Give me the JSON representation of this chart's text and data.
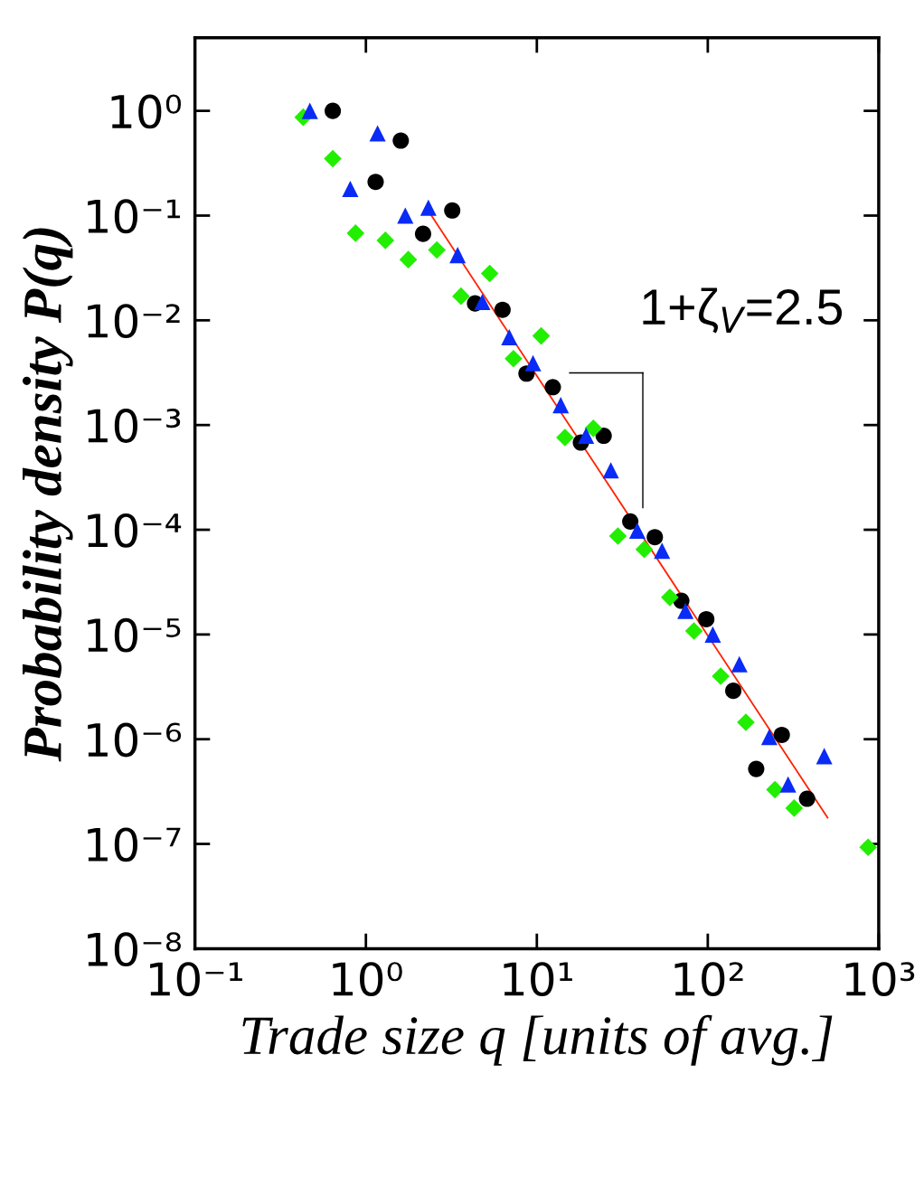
{
  "chart_data": {
    "type": "scatter",
    "xlabel": "Trade size q [units of avg.]",
    "ylabel": "Probability density P(q)",
    "log": "xy",
    "xlim": [
      0.1,
      1000
    ],
    "ylim": [
      1e-08,
      5
    ],
    "xticks": [
      {
        "value": 0.1,
        "label": "10⁻¹"
      },
      {
        "value": 1,
        "label": "10⁰"
      },
      {
        "value": 10,
        "label": "10¹"
      },
      {
        "value": 100,
        "label": "10²"
      },
      {
        "value": 1000,
        "label": "10³"
      }
    ],
    "yticks": [
      {
        "value": 1e-08,
        "label": "10⁻⁸"
      },
      {
        "value": 1e-07,
        "label": "10⁻⁷"
      },
      {
        "value": 1e-06,
        "label": "10⁻⁶"
      },
      {
        "value": 1e-05,
        "label": "10⁻⁵"
      },
      {
        "value": 0.0001,
        "label": "10⁻⁴"
      },
      {
        "value": 0.001,
        "label": "10⁻³"
      },
      {
        "value": 0.01,
        "label": "10⁻²"
      },
      {
        "value": 0.1,
        "label": "10⁻¹"
      },
      {
        "value": 1,
        "label": "10⁰"
      }
    ],
    "grid": false,
    "legend": false,
    "annotations": [
      "1+ζ$_{V}$=2.5"
    ],
    "series": [
      {
        "marker": "circle",
        "color": "#000000",
        "x": [
          0.64,
          1.14,
          1.6,
          2.16,
          3.2,
          4.35,
          6.3,
          8.7,
          12.4,
          18.1,
          24.6,
          35.2,
          49,
          70,
          98,
          141,
          192,
          271,
          381
        ],
        "values": [
          1.0,
          0.21,
          0.52,
          0.067,
          0.112,
          0.0145,
          0.0126,
          0.0031,
          0.0023,
          0.00068,
          0.00079,
          0.00012,
          8.5e-05,
          2.1e-05,
          1.4e-05,
          2.9e-06,
          5.2e-07,
          1.1e-06,
          2.7e-07
        ]
      },
      {
        "marker": "diamond",
        "color": "#22ee00",
        "x": [
          0.43,
          0.64,
          0.87,
          1.3,
          1.77,
          2.6,
          3.6,
          5.3,
          7.3,
          10.6,
          14.6,
          21.4,
          29.8,
          42.5,
          60,
          83,
          119,
          167,
          247,
          320,
          867
        ],
        "values": [
          0.87,
          0.35,
          0.068,
          0.058,
          0.038,
          0.047,
          0.017,
          0.028,
          0.0043,
          0.0071,
          0.00076,
          0.00093,
          8.7e-05,
          6.5e-05,
          2.26e-05,
          1.08e-05,
          4e-06,
          1.45e-06,
          3.3e-07,
          2.2e-07,
          9.3e-08
        ]
      },
      {
        "marker": "triangle",
        "color": "#0a2af5",
        "x": [
          0.47,
          0.81,
          1.17,
          1.7,
          2.32,
          3.44,
          4.8,
          6.9,
          9.5,
          13.8,
          19.4,
          27.1,
          38.7,
          54,
          74,
          107,
          153,
          229,
          295,
          480
        ],
        "values": [
          1.0,
          0.18,
          0.61,
          0.1,
          0.119,
          0.042,
          0.015,
          0.0069,
          0.0039,
          0.00155,
          0.00079,
          0.00037,
          9.8e-05,
          6.3e-05,
          1.68e-05,
          1e-05,
          5.2e-06,
          1.05e-06,
          3.7e-07,
          6.9e-07
        ]
      },
      {
        "type": "line",
        "marker": "none",
        "line_style": "solid",
        "color": "#ff2200",
        "x": [
          2.38,
          502
        ],
        "values": [
          0.104,
          1.78e-07
        ]
      }
    ]
  }
}
